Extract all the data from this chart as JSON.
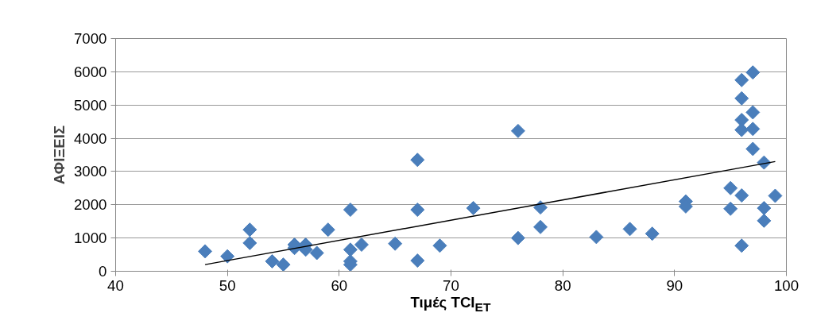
{
  "chart_data": {
    "type": "scatter",
    "xlabel": "Τιμές TCI$_{ET}$",
    "ylabel": "ΑΦΙΞΕΙΣ",
    "xlim": [
      40,
      100
    ],
    "xticks": [
      40,
      50,
      60,
      70,
      80,
      90,
      100
    ],
    "ylim": [
      0,
      7000
    ],
    "yticks": [
      0,
      1000,
      2000,
      3000,
      4000,
      5000,
      6000,
      7000
    ],
    "grid": "y",
    "series": [
      {
        "marker": "diamond",
        "color": "#4a7ebb",
        "x": [
          48,
          50,
          52,
          52,
          54,
          55,
          56,
          56,
          57,
          57,
          58,
          59,
          61,
          61,
          61,
          61,
          62,
          65,
          67,
          67,
          67,
          69,
          72,
          76,
          76,
          78,
          78,
          83,
          86,
          88,
          91,
          91,
          95,
          95,
          96,
          96,
          96,
          96,
          96,
          96,
          97,
          97,
          97,
          97,
          98,
          98,
          98,
          99
        ],
        "values": [
          600,
          450,
          1250,
          850,
          300,
          200,
          800,
          700,
          800,
          650,
          550,
          1250,
          1850,
          650,
          300,
          200,
          800,
          830,
          3350,
          1850,
          320,
          770,
          1900,
          4220,
          1000,
          1920,
          1330,
          1030,
          1270,
          1130,
          2100,
          1950,
          2500,
          1880,
          5750,
          5200,
          4550,
          4250,
          2280,
          770,
          5980,
          4780,
          4280,
          3680,
          3270,
          1900,
          1520,
          2270
        ]
      },
      {
        "type": "line",
        "color": "#000000",
        "x": [
          48,
          99
        ],
        "values": [
          200,
          3300
        ]
      }
    ]
  }
}
